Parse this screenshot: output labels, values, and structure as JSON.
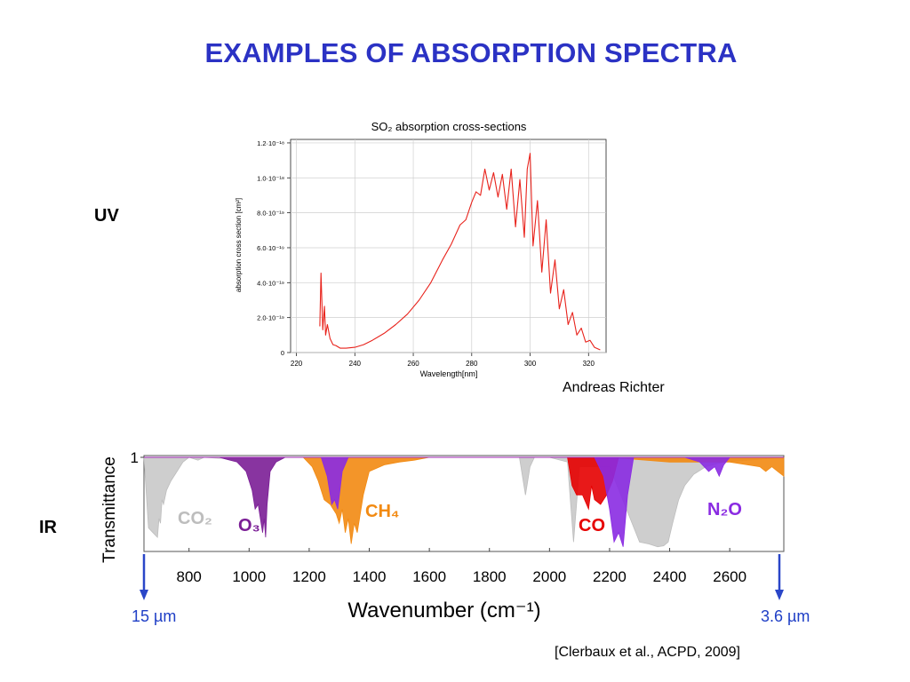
{
  "slide": {
    "title": "EXAMPLES OF ABSORPTION SPECTRA",
    "uv_label": "UV",
    "ir_label": "IR",
    "uv_credit": "Andreas Richter",
    "ir_credit": "[Clerbaux et al., ACPD, 2009]",
    "left_marker": "15 µm",
    "right_marker": "3.6 µm",
    "colors": {
      "title": "#2b32c4",
      "marker": "#1f3fc6",
      "arrow": "#2a46c8"
    }
  },
  "chart_data": [
    {
      "type": "line",
      "title": "SO₂ absorption cross-sections",
      "xlabel": "Wavelength[nm]",
      "ylabel": "absorption cross section [cm²]",
      "xlim": [
        218,
        326
      ],
      "ylim": [
        0,
        1.22e-18
      ],
      "xticks": [
        220,
        240,
        260,
        280,
        300,
        320
      ],
      "yticks": [
        0,
        2e-19,
        4e-19,
        6e-19,
        8e-19,
        1e-18,
        1.2e-18
      ],
      "ytick_labels": [
        "0",
        "2.0·10⁻¹⁹",
        "4.0·10⁻¹⁹",
        "6.0·10⁻¹⁹",
        "8.0·10⁻¹⁹",
        "1.0·10⁻¹⁸",
        "1.2·10⁻¹⁸"
      ],
      "grid": true,
      "series": [
        {
          "color": "#e8221b",
          "x": [
            228,
            228.4,
            229,
            229.6,
            230,
            230.6,
            231.5,
            232.5,
            233.5,
            235,
            237,
            240,
            243,
            246,
            250,
            254,
            258,
            262,
            266,
            270,
            273,
            276,
            278,
            280,
            281.5,
            283,
            284.5,
            286,
            287.5,
            289,
            290.5,
            292,
            293.5,
            295,
            296.5,
            298,
            299,
            300,
            301,
            302.5,
            304,
            305.5,
            307,
            308.5,
            310,
            311.5,
            313,
            314.5,
            316,
            317.5,
            319,
            320.5,
            322,
            324
          ],
          "y": [
            1.5e-19,
            4.55e-19,
            1.3e-19,
            2.65e-19,
            1e-19,
            1.6e-19,
            8e-20,
            4.5e-20,
            4e-20,
            2.5e-20,
            2.5e-20,
            3e-20,
            4.5e-20,
            7e-20,
            1.1e-19,
            1.6e-19,
            2.2e-19,
            3e-19,
            4e-19,
            5.3e-19,
            6.2e-19,
            7.3e-19,
            7.6e-19,
            8.6e-19,
            9.2e-19,
            9e-19,
            1.05e-18,
            9.3e-19,
            1.03e-18,
            8.9e-19,
            1.02e-18,
            8.2e-19,
            1.05e-18,
            7.2e-19,
            9.9e-19,
            6.6e-19,
            1.05e-18,
            1.14e-18,
            6.1e-19,
            8.7e-19,
            4.6e-19,
            7.6e-19,
            3.4e-19,
            5.3e-19,
            2.5e-19,
            3.6e-19,
            1.6e-19,
            2.3e-19,
            1e-19,
            1.4e-19,
            6e-20,
            7e-20,
            3e-20,
            1.5e-20
          ]
        }
      ]
    },
    {
      "type": "area",
      "xlabel": "Wavenumber (cm⁻¹)",
      "ylabel": "Transmittance",
      "xlim": [
        650,
        2780
      ],
      "ylim": [
        0,
        1
      ],
      "xticks": [
        800,
        1000,
        1200,
        1400,
        1600,
        1800,
        2000,
        2200,
        2400,
        2600
      ],
      "yticks": [
        1
      ],
      "grid": false,
      "series": [
        {
          "name": "CO₂",
          "color": "#bdbdbd",
          "x": [
            650,
            665,
            680,
            695,
            700,
            705,
            710,
            715,
            725,
            740,
            760,
            780,
            800,
            830,
            850,
            900,
            950,
            1000,
            1050,
            1100,
            1900,
            1920,
            1935,
            1950,
            2000,
            2060,
            2080,
            2100,
            2200,
            2250,
            2300,
            2330,
            2360,
            2380,
            2395,
            2410,
            2430,
            2450,
            2480,
            2520,
            2580,
            2660,
            2780
          ],
          "y": [
            1,
            0.25,
            0.2,
            0.15,
            0.35,
            0.3,
            0.55,
            0.5,
            0.65,
            0.75,
            0.85,
            0.95,
            1,
            0.97,
            1,
            0.99,
            1,
            1,
            1,
            1,
            1,
            0.6,
            0.9,
            1,
            1,
            0.95,
            0.1,
            0.9,
            0.9,
            0.5,
            0.1,
            0.08,
            0.05,
            0.06,
            0.1,
            0.3,
            0.55,
            0.7,
            0.82,
            0.9,
            0.95,
            0.97,
            1
          ]
        },
        {
          "name": "O₃",
          "color": "#7b1e96",
          "x": [
            650,
            900,
            960,
            990,
            1010,
            1020,
            1030,
            1040,
            1045,
            1050,
            1055,
            1060,
            1070,
            1090,
            1120,
            2780
          ],
          "y": [
            1,
            1,
            0.95,
            0.85,
            0.65,
            0.45,
            0.5,
            0.3,
            0.2,
            0.35,
            0.15,
            0.5,
            0.85,
            0.95,
            1,
            1
          ]
        },
        {
          "name": "CH₄",
          "color": "#f28a12",
          "x": [
            650,
            1180,
            1210,
            1230,
            1250,
            1270,
            1290,
            1300,
            1310,
            1320,
            1330,
            1340,
            1350,
            1360,
            1380,
            1400,
            1450,
            1500,
            1550,
            1600,
            2200,
            2400,
            2600,
            2700,
            2720,
            2740,
            2760,
            2780
          ],
          "y": [
            1,
            1,
            0.9,
            0.75,
            0.55,
            0.5,
            0.4,
            0.3,
            0.45,
            0.2,
            0.35,
            0.08,
            0.3,
            0.2,
            0.6,
            0.85,
            0.92,
            0.95,
            0.97,
            1,
            1,
            0.95,
            0.95,
            0.9,
            0.85,
            0.9,
            0.85,
            0.8
          ]
        },
        {
          "name": "N₂O",
          "color": "#8a2be2",
          "x": [
            650,
            1240,
            1260,
            1275,
            1285,
            1295,
            1310,
            1330,
            2150,
            2180,
            2200,
            2215,
            2230,
            2245,
            2260,
            2280,
            2450,
            2500,
            2530,
            2550,
            2565,
            2580,
            2600,
            2780
          ],
          "y": [
            1,
            1,
            0.8,
            0.5,
            0.55,
            0.45,
            0.85,
            1,
            1,
            0.8,
            0.45,
            0.1,
            0.2,
            0.05,
            0.6,
            1,
            1,
            0.95,
            0.85,
            0.9,
            0.8,
            0.92,
            1,
            1
          ]
        },
        {
          "name": "CO",
          "color": "#e60000",
          "x": [
            650,
            2060,
            2075,
            2090,
            2110,
            2130,
            2140,
            2150,
            2170,
            2190,
            2210,
            2230,
            2780
          ],
          "y": [
            1,
            1,
            0.7,
            0.6,
            0.6,
            0.45,
            0.7,
            0.55,
            0.5,
            0.6,
            0.75,
            1,
            1
          ]
        }
      ]
    }
  ]
}
